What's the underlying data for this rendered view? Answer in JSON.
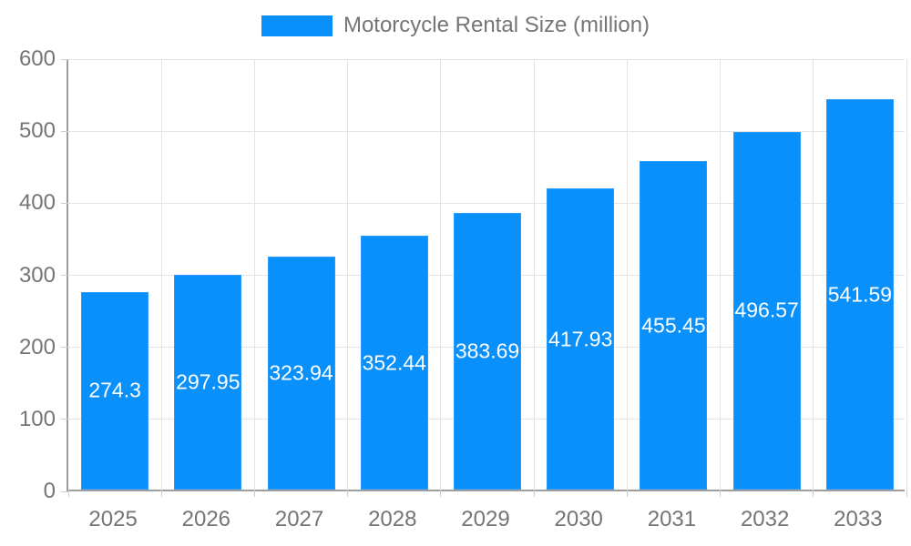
{
  "legend": {
    "label": "Motorcycle Rental Size (million)",
    "swatch_color": "#0990fb"
  },
  "chart_data": {
    "type": "bar",
    "title": "",
    "xlabel": "",
    "ylabel": "",
    "categories": [
      "2025",
      "2026",
      "2027",
      "2028",
      "2029",
      "2030",
      "2031",
      "2032",
      "2033"
    ],
    "series": [
      {
        "name": "Motorcycle Rental Size (million)",
        "values": [
          274.3,
          297.95,
          323.94,
          352.44,
          383.69,
          417.93,
          455.45,
          496.57,
          541.59
        ]
      }
    ],
    "value_labels": [
      "274.3",
      "297.95",
      "323.94",
      "352.44",
      "383.69",
      "417.93",
      "455.45",
      "496.57",
      "541.59"
    ],
    "ylim": [
      0,
      600
    ],
    "ytick_step": 100,
    "ytick_labels": [
      "0",
      "100",
      "200",
      "300",
      "400",
      "500",
      "600"
    ],
    "grid": true,
    "legend_position": "top-center",
    "colors": {
      "bar": "#0990fb",
      "bar_edge": "#2a9cfb",
      "axis_line": "#9e9e9e",
      "gridline": "#e4e4e4",
      "tick": "#cccccc",
      "axis_text": "#757575",
      "value_text": "#ffffff",
      "background": "#ffffff"
    }
  }
}
